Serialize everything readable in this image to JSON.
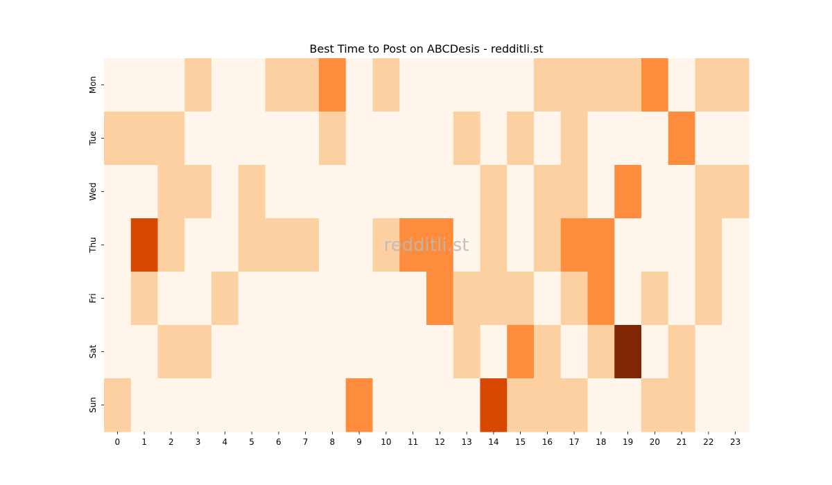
{
  "chart_data": {
    "type": "heatmap",
    "title": "Best Time to Post on ABCDesis - redditli.st",
    "xlabel": "",
    "ylabel": "",
    "x_categories": [
      "0",
      "1",
      "2",
      "3",
      "4",
      "5",
      "6",
      "7",
      "8",
      "9",
      "10",
      "11",
      "12",
      "13",
      "14",
      "15",
      "16",
      "17",
      "18",
      "19",
      "20",
      "21",
      "22",
      "23"
    ],
    "y_categories": [
      "Mon",
      "Tue",
      "Wed",
      "Thu",
      "Fri",
      "Sat",
      "Sun"
    ],
    "values": [
      [
        0,
        0,
        0,
        1,
        0,
        0,
        1,
        1,
        2,
        0,
        1,
        0,
        0,
        0,
        0,
        0,
        1,
        1,
        1,
        1,
        2,
        0,
        1,
        1
      ],
      [
        1,
        1,
        1,
        0,
        0,
        0,
        0,
        0,
        1,
        0,
        0,
        0,
        0,
        1,
        0,
        1,
        0,
        1,
        0,
        0,
        0,
        2,
        0,
        0
      ],
      [
        0,
        0,
        1,
        1,
        0,
        1,
        0,
        0,
        0,
        0,
        0,
        0,
        0,
        0,
        1,
        0,
        1,
        1,
        0,
        2,
        0,
        0,
        1,
        1
      ],
      [
        0,
        3,
        1,
        0,
        0,
        1,
        1,
        1,
        0,
        0,
        1,
        2,
        2,
        0,
        1,
        0,
        1,
        2,
        2,
        0,
        0,
        0,
        1,
        0
      ],
      [
        0,
        1,
        0,
        0,
        1,
        0,
        0,
        0,
        0,
        0,
        0,
        0,
        2,
        1,
        1,
        1,
        0,
        1,
        2,
        0,
        1,
        0,
        1,
        0
      ],
      [
        0,
        0,
        1,
        1,
        0,
        0,
        0,
        0,
        0,
        0,
        0,
        0,
        0,
        1,
        0,
        2,
        1,
        0,
        1,
        4,
        0,
        1,
        0,
        0
      ],
      [
        1,
        0,
        0,
        0,
        0,
        0,
        0,
        0,
        0,
        2,
        0,
        0,
        0,
        0,
        3,
        1,
        1,
        1,
        0,
        0,
        1,
        1,
        0,
        0
      ]
    ],
    "color_scale": [
      "#fff5eb",
      "#fdd0a2",
      "#fd8d3c",
      "#d94801",
      "#7f2704"
    ],
    "colorbar": false,
    "grid": false,
    "watermark": "redditli.st"
  }
}
